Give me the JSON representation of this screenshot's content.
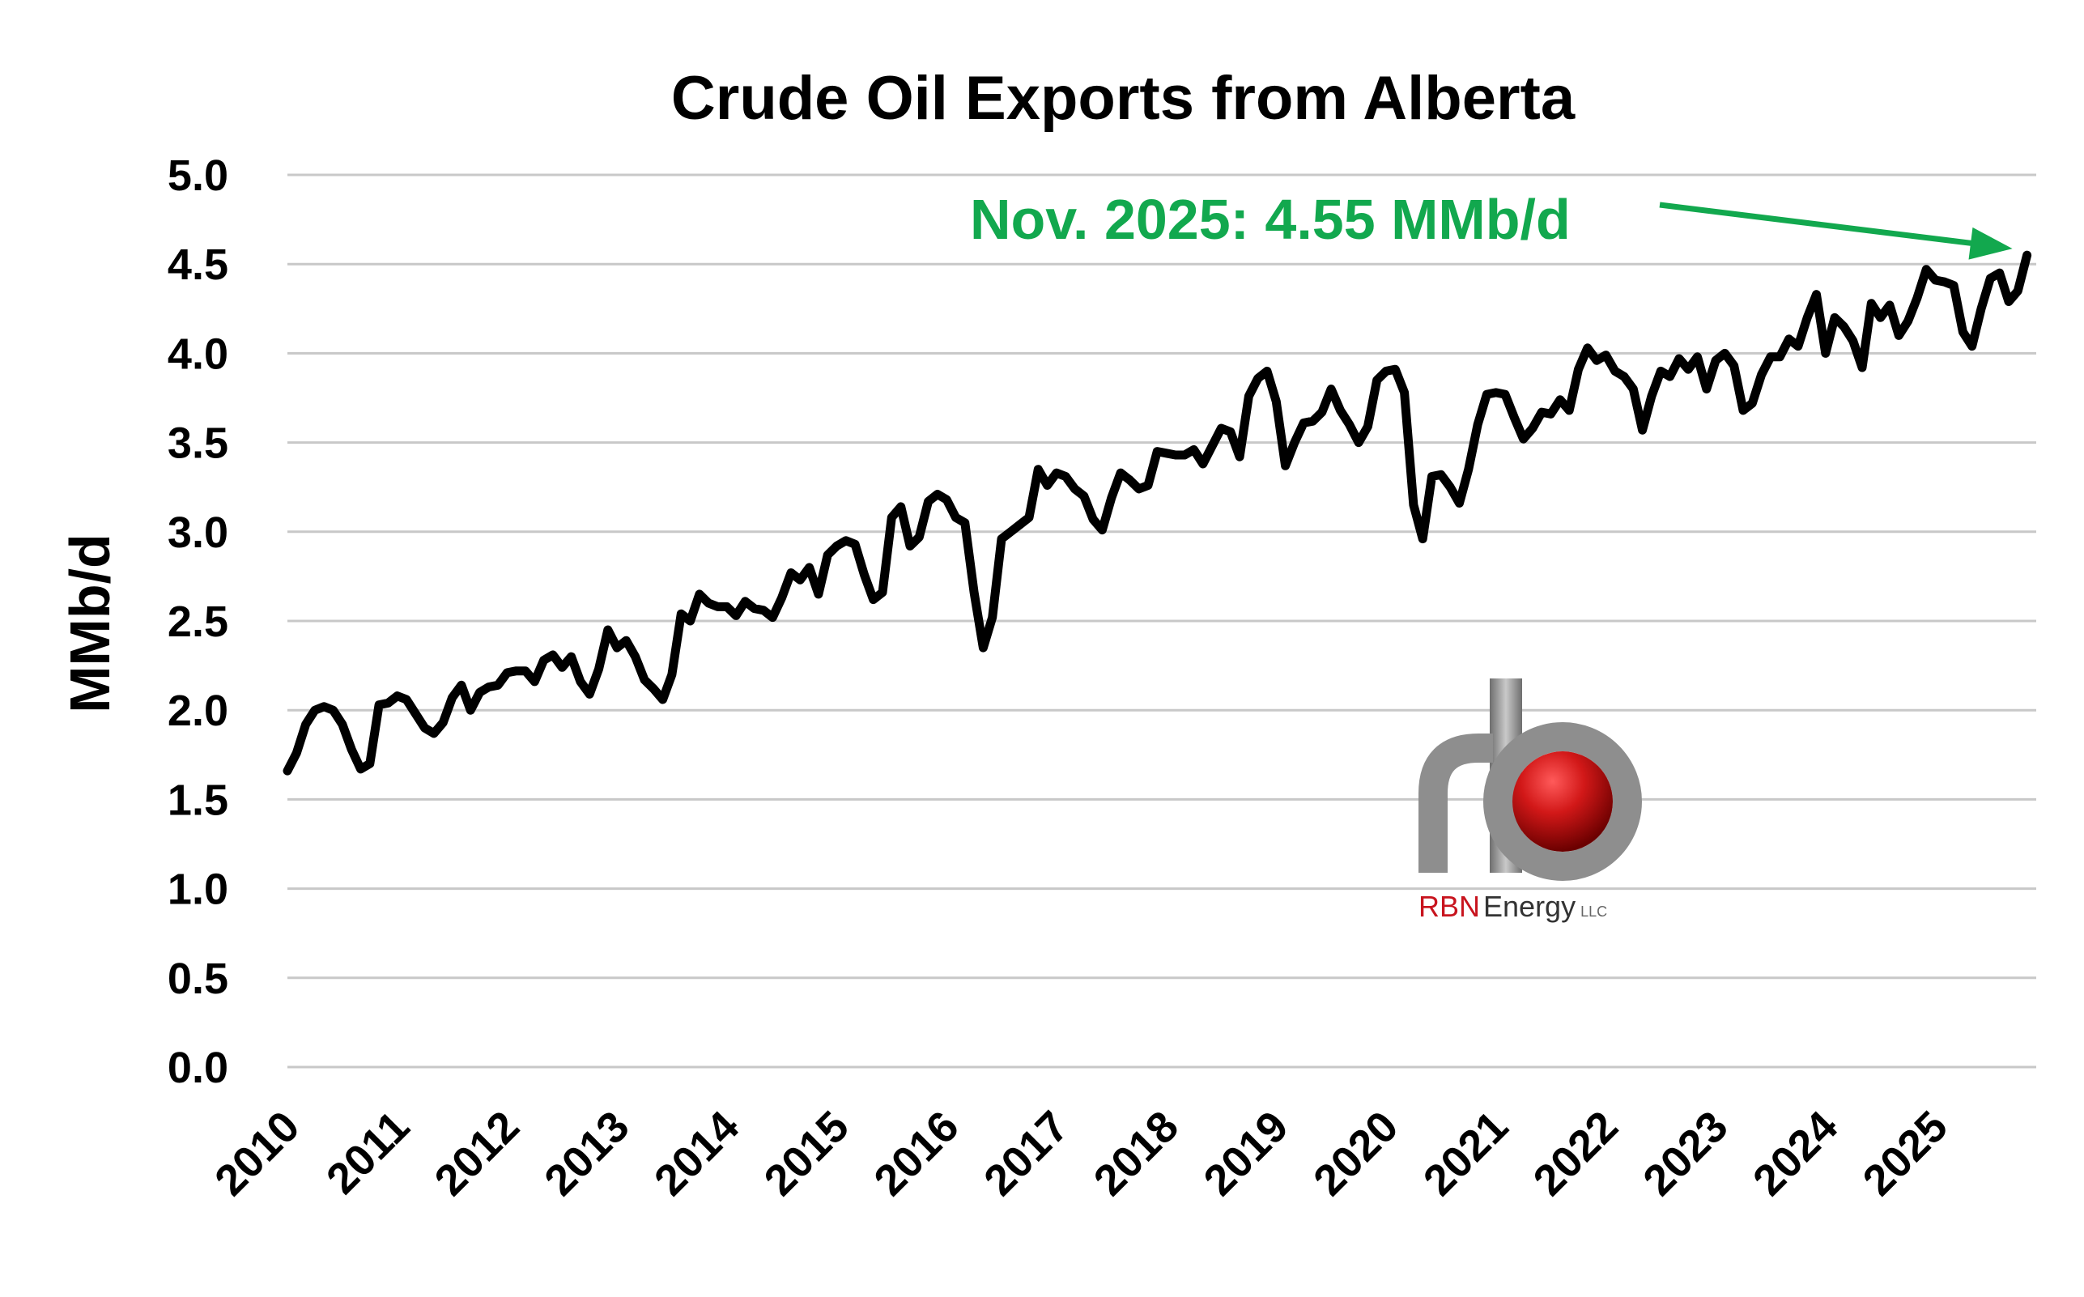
{
  "chart_data": {
    "type": "line",
    "title": "Crude Oil Exports from Alberta",
    "ylabel": "MMb/d",
    "xlabel": "",
    "ylim": [
      0,
      5
    ],
    "yticks": [
      "0.0",
      "0.5",
      "1.0",
      "1.5",
      "2.0",
      "2.5",
      "3.0",
      "3.5",
      "4.0",
      "4.5",
      "5.0"
    ],
    "xticks": [
      "2010",
      "2011",
      "2012",
      "2013",
      "2014",
      "2015",
      "2016",
      "2017",
      "2018",
      "2019",
      "2020",
      "2021",
      "2022",
      "2023",
      "2024",
      "2025"
    ],
    "x_start": "2010-01",
    "x_end": "2025-11",
    "grid": true,
    "annotation": {
      "text": "Nov. 2025: 4.55 MMb/d",
      "color": "#12a84e"
    },
    "series": [
      {
        "color": "#000000",
        "values": [
          1.66,
          1.76,
          1.92,
          2.0,
          2.02,
          2.0,
          1.92,
          1.78,
          1.67,
          1.7,
          2.03,
          2.04,
          2.08,
          2.06,
          1.98,
          1.9,
          1.87,
          1.93,
          2.07,
          2.14,
          2.0,
          2.1,
          2.13,
          2.14,
          2.21,
          2.22,
          2.22,
          2.16,
          2.28,
          2.31,
          2.24,
          2.3,
          2.16,
          2.09,
          2.23,
          2.45,
          2.35,
          2.39,
          2.3,
          2.17,
          2.12,
          2.06,
          2.2,
          2.54,
          2.5,
          2.65,
          2.6,
          2.58,
          2.58,
          2.53,
          2.61,
          2.57,
          2.56,
          2.52,
          2.63,
          2.77,
          2.73,
          2.8,
          2.65,
          2.87,
          2.92,
          2.95,
          2.93,
          2.76,
          2.62,
          2.66,
          3.08,
          3.14,
          2.92,
          2.97,
          3.17,
          3.21,
          3.18,
          3.08,
          3.05,
          2.66,
          2.35,
          2.52,
          2.96,
          3.0,
          3.04,
          3.08,
          3.35,
          3.26,
          3.33,
          3.31,
          3.24,
          3.2,
          3.07,
          3.01,
          3.19,
          3.33,
          3.29,
          3.24,
          3.26,
          3.45,
          3.44,
          3.43,
          3.43,
          3.46,
          3.38,
          3.48,
          3.58,
          3.56,
          3.42,
          3.76,
          3.86,
          3.9,
          3.73,
          3.37,
          3.5,
          3.61,
          3.62,
          3.67,
          3.8,
          3.68,
          3.6,
          3.5,
          3.59,
          3.85,
          3.9,
          3.91,
          3.78,
          3.15,
          2.96,
          3.31,
          3.32,
          3.25,
          3.16,
          3.35,
          3.6,
          3.77,
          3.78,
          3.77,
          3.64,
          3.52,
          3.58,
          3.67,
          3.66,
          3.74,
          3.68,
          3.91,
          4.03,
          3.96,
          3.99,
          3.9,
          3.87,
          3.8,
          3.57,
          3.76,
          3.9,
          3.87,
          3.97,
          3.91,
          3.98,
          3.8,
          3.96,
          4.0,
          3.93,
          3.68,
          3.72,
          3.88,
          3.98,
          3.98,
          4.08,
          4.04,
          4.2,
          4.33,
          4.0,
          4.2,
          4.15,
          4.07,
          3.92,
          4.28,
          4.2,
          4.27,
          4.1,
          4.18,
          4.31,
          4.47,
          4.41,
          4.4,
          4.38,
          4.12,
          4.04,
          4.25,
          4.42,
          4.45,
          4.29,
          4.35,
          4.55
        ]
      }
    ]
  },
  "logo": {
    "text_red": "RBN",
    "text_dark": "Energy",
    "suffix": "LLC",
    "red": "#c8141e",
    "gray": "#8a8a8a"
  }
}
